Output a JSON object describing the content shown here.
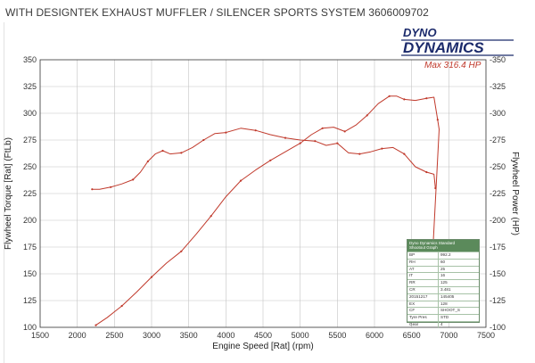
{
  "header": {
    "title": "WITH DESIGNTEK EXHAUST MUFFLER / SILENCER SPORTS SYSTEM 3606009702"
  },
  "logo": {
    "line1": "DYNO",
    "line2": "DYNAMICS"
  },
  "max_label": "Max 316.4 HP",
  "info_box": {
    "title": "Dyno Dynamics Standard",
    "subtitle": "Shootout Graph",
    "rows": [
      {
        "k": "BP",
        "v": "992.2"
      },
      {
        "k": "RH",
        "v": "60"
      },
      {
        "k": "AT",
        "v": "25"
      },
      {
        "k": "IT",
        "v": "16"
      },
      {
        "k": "RR",
        "v": "125"
      },
      {
        "k": "CR",
        "v": "3.481"
      },
      {
        "k": "20151217",
        "v": "145405"
      },
      {
        "k": "EX",
        "v": "128"
      },
      {
        "k": "CF",
        "v": "SHOOT_S"
      },
      {
        "k": "Tyre Pres",
        "v": "STD"
      },
      {
        "k": "Gear",
        "v": "4"
      }
    ]
  },
  "colors": {
    "curve": "#c0392b",
    "grid": "#c4c4c4",
    "axis": "#333333",
    "box_green": "#5b8a5b"
  },
  "chart_data": {
    "type": "line",
    "xlabel": "Engine Speed [Rat] (rpm)",
    "ylabel": "Flywheel Torque [Rat] (FtLb)",
    "ylabel_right": "Flywheel Power (HP)",
    "xlim": [
      1500,
      7500
    ],
    "ylim": [
      100,
      350
    ],
    "ylim_right": [
      100,
      350
    ],
    "x_ticks": [
      1500,
      2000,
      2500,
      3000,
      3500,
      4000,
      4500,
      5000,
      5500,
      6000,
      6500,
      7000,
      7500
    ],
    "y_ticks": [
      100,
      125,
      150,
      175,
      200,
      225,
      250,
      275,
      300,
      325,
      350
    ],
    "grid": true,
    "series": [
      {
        "axis": "left",
        "x": [
          2200,
          2300,
          2450,
          2600,
          2750,
          2850,
          2950,
          3050,
          3150,
          3250,
          3400,
          3550,
          3700,
          3850,
          4000,
          4200,
          4400,
          4600,
          4800,
          5000,
          5200,
          5350,
          5500,
          5650,
          5800,
          5950,
          6100,
          6250,
          6400,
          6550,
          6700,
          6800,
          6820
        ],
        "y": [
          229,
          229,
          231,
          234,
          238,
          245,
          255,
          262,
          265,
          262,
          263,
          268,
          275,
          281,
          282,
          286,
          284,
          280,
          277,
          275,
          274,
          270,
          272,
          263,
          262,
          264,
          267,
          268,
          262,
          250,
          245,
          243,
          230
        ]
      },
      {
        "axis": "right",
        "x": [
          2250,
          2400,
          2600,
          2800,
          3000,
          3200,
          3400,
          3600,
          3800,
          4000,
          4200,
          4400,
          4600,
          4800,
          5000,
          5150,
          5300,
          5450,
          5600,
          5750,
          5900,
          6050,
          6200,
          6300,
          6400,
          6550,
          6700,
          6800,
          6850,
          6870,
          6790
        ],
        "y": [
          102,
          109,
          120,
          133,
          147,
          160,
          171,
          187,
          204,
          222,
          237,
          247,
          256,
          264,
          272,
          280,
          286,
          287,
          283,
          289,
          298,
          309,
          316,
          316,
          313,
          312,
          314,
          315,
          294,
          285,
          178
        ]
      }
    ]
  }
}
